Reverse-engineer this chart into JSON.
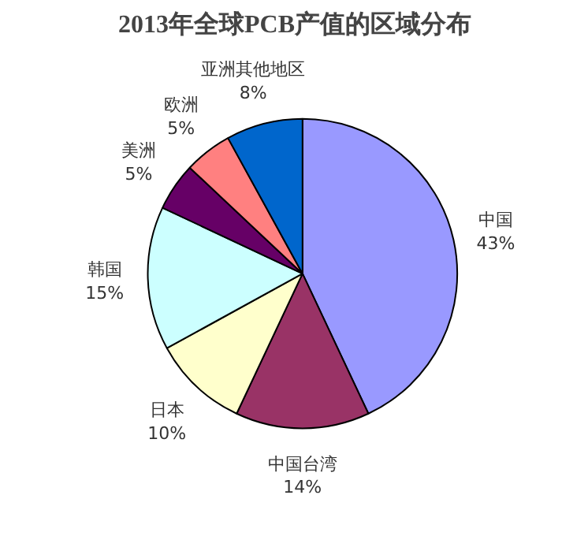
{
  "chart_data": {
    "type": "pie",
    "title": "2013年全球PCB产值的区域分布",
    "categories": [
      "中国",
      "中国台湾",
      "日本",
      "韩国",
      "美洲",
      "欧洲",
      "亚洲其他地区"
    ],
    "values": [
      43,
      14,
      10,
      15,
      5,
      5,
      8
    ],
    "value_labels": [
      "43%",
      "14%",
      "10%",
      "15%",
      "5%",
      "5%",
      "8%"
    ],
    "colors": [
      "#9999ff",
      "#993366",
      "#ffffcc",
      "#ccffff",
      "#660066",
      "#ff8080",
      "#0066cc"
    ]
  }
}
